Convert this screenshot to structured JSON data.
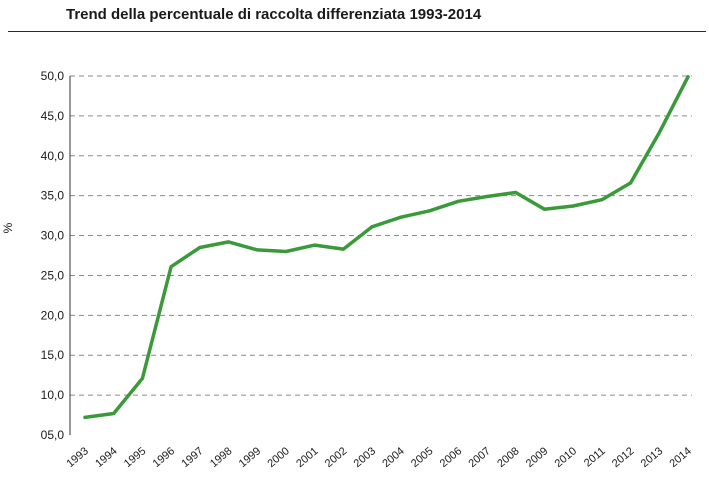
{
  "chart_data": {
    "type": "line",
    "title": "Trend della percentuale di raccolta differenziata 1993-2014",
    "ylabel": "%",
    "xlabel": "",
    "categories": [
      "1993",
      "1994",
      "1995",
      "1996",
      "1997",
      "1998",
      "1999",
      "2000",
      "2001",
      "2002",
      "2003",
      "2004",
      "2005",
      "2006",
      "2007",
      "2008",
      "2009",
      "2010",
      "2011",
      "2012",
      "2013",
      "2014"
    ],
    "y_ticks": [
      "05,0",
      "10,0",
      "15,0",
      "20,0",
      "25,0",
      "30,0",
      "35,0",
      "40,0",
      "45,0",
      "50,0"
    ],
    "ylim": [
      5,
      50
    ],
    "grid": true,
    "series": [
      {
        "values": [
          7.2,
          7.7,
          12.1,
          26.1,
          28.5,
          29.2,
          28.2,
          28.0,
          28.8,
          28.3,
          31.1,
          32.3,
          33.1,
          34.3,
          34.9,
          35.4,
          33.3,
          33.7,
          34.5,
          36.6,
          42.9,
          49.9
        ],
        "color": "#3a9a3a"
      }
    ]
  }
}
